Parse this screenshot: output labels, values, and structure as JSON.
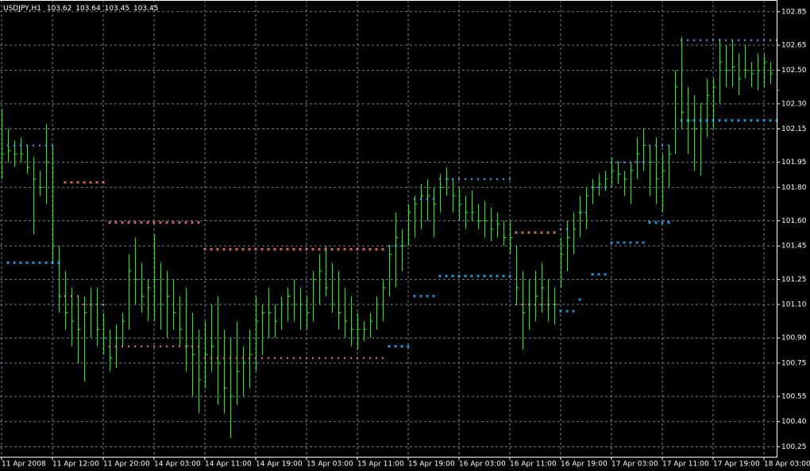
{
  "chart_data": {
    "type": "hlc",
    "symbol": "USDJPY,H1",
    "quote": [
      103.62,
      103.64,
      103.45,
      103.45
    ],
    "bar_color": "#00ff00",
    "grid": true,
    "ylim": [
      100.19,
      102.92
    ],
    "yticks": [
      102.85,
      102.65,
      {
        "value": 102.5,
        "label": "102.50"
      },
      {
        "value": 102.3,
        "label": "102.30"
      },
      102.15,
      101.95,
      {
        "value": 101.8,
        "label": "101.80"
      },
      {
        "value": 101.6,
        "label": "101.60"
      },
      101.45,
      101.25,
      {
        "value": 101.1,
        "label": "101.10"
      },
      {
        "value": 100.9,
        "label": "100.90"
      },
      100.75,
      100.55,
      {
        "value": 100.4,
        "label": "100.40"
      },
      100.25
    ],
    "categories": [
      "11 Apr 2008",
      null,
      null,
      null,
      null,
      null,
      null,
      null,
      "11 Apr 12:00",
      null,
      null,
      null,
      null,
      null,
      null,
      null,
      "11 Apr 20:00",
      null,
      null,
      null,
      null,
      null,
      null,
      null,
      "14 Apr 03:00",
      null,
      null,
      null,
      null,
      null,
      null,
      null,
      "14 Apr 11:00",
      null,
      null,
      null,
      null,
      null,
      null,
      null,
      "14 Apr 19:00",
      null,
      null,
      null,
      null,
      null,
      null,
      null,
      "15 Apr 03:00",
      null,
      null,
      null,
      null,
      null,
      null,
      null,
      "15 Apr 11:00",
      null,
      null,
      null,
      null,
      null,
      null,
      null,
      "15 Apr 19:00",
      null,
      null,
      null,
      null,
      null,
      null,
      null,
      "16 Apr 03:00",
      null,
      null,
      null,
      null,
      null,
      null,
      null,
      "16 Apr 11:00",
      null,
      null,
      null,
      null,
      null,
      null,
      null,
      "16 Apr 19:00",
      null,
      null,
      null,
      null,
      null,
      null,
      null,
      "17 Apr 03:00",
      null,
      null,
      null,
      null,
      null,
      null,
      null,
      "17 Apr 11:00",
      null,
      null,
      null,
      null,
      null,
      null,
      null,
      "17 Apr 19:00",
      null,
      null,
      null,
      null,
      null,
      null,
      null,
      "18 Apr 03:00",
      null,
      null
    ],
    "high": [
      102.27,
      102.15,
      102.08,
      102.1,
      102.05,
      101.98,
      101.9,
      102.18,
      102.05,
      101.45,
      101.3,
      101.2,
      101.15,
      101.15,
      101.2,
      101.2,
      101.05,
      100.95,
      100.98,
      101.05,
      101.4,
      101.5,
      101.35,
      101.25,
      101.52,
      101.35,
      101.3,
      101.25,
      101.15,
      101.2,
      101.05,
      100.95,
      101.0,
      101.1,
      101.15,
      100.95,
      100.9,
      101.0,
      100.85,
      100.95,
      101.15,
      101.1,
      101.2,
      101.1,
      101.15,
      101.2,
      101.25,
      101.2,
      101.15,
      101.3,
      101.4,
      101.45,
      101.35,
      101.3,
      101.2,
      101.15,
      101.05,
      101.0,
      101.05,
      101.15,
      101.25,
      101.45,
      101.65,
      101.55,
      101.7,
      101.75,
      101.82,
      101.85,
      101.8,
      101.88,
      101.92,
      101.85,
      101.8,
      101.75,
      101.78,
      101.7,
      101.72,
      101.68,
      101.65,
      101.6,
      101.6,
      101.45,
      101.3,
      101.25,
      101.3,
      101.35,
      101.25,
      101.2,
      101.5,
      101.6,
      101.65,
      101.75,
      101.8,
      101.85,
      101.88,
      101.9,
      101.98,
      101.95,
      101.9,
      101.95,
      102.1,
      102.15,
      102.05,
      102.1,
      102.0,
      102.05,
      102.5,
      102.7,
      102.4,
      102.35,
      102.3,
      102.45,
      102.45,
      102.69,
      102.65,
      102.68,
      102.6,
      102.65,
      102.55,
      102.6,
      102.6,
      102.55,
      102.52
    ],
    "low": [
      101.85,
      101.95,
      101.92,
      101.95,
      101.88,
      101.52,
      101.75,
      101.7,
      101.35,
      101.05,
      100.95,
      100.85,
      100.75,
      100.64,
      100.9,
      100.85,
      100.8,
      100.7,
      100.72,
      100.85,
      100.95,
      101.1,
      101.05,
      101.0,
      101.0,
      100.95,
      100.9,
      100.95,
      100.85,
      100.7,
      100.55,
      100.45,
      100.6,
      100.7,
      100.5,
      100.45,
      100.3,
      100.5,
      100.55,
      100.6,
      100.7,
      100.8,
      100.9,
      100.9,
      100.95,
      101.0,
      101.0,
      100.95,
      100.95,
      101.0,
      101.1,
      101.15,
      101.05,
      100.95,
      100.9,
      100.85,
      100.83,
      100.88,
      100.9,
      100.95,
      101.0,
      101.15,
      101.2,
      101.3,
      101.45,
      101.5,
      101.55,
      101.6,
      101.5,
      101.65,
      101.75,
      101.65,
      101.6,
      101.55,
      101.6,
      101.55,
      101.5,
      101.48,
      101.5,
      101.45,
      101.4,
      101.1,
      100.83,
      100.95,
      101.0,
      101.05,
      101.0,
      100.98,
      101.2,
      101.3,
      101.4,
      101.5,
      101.55,
      101.7,
      101.75,
      101.78,
      101.8,
      101.82,
      101.75,
      101.7,
      101.85,
      101.9,
      101.75,
      101.7,
      101.65,
      101.8,
      102.0,
      102.15,
      102.0,
      101.9,
      101.87,
      102.1,
      102.15,
      102.3,
      102.4,
      102.4,
      102.35,
      102.45,
      102.4,
      102.38,
      102.4,
      102.42,
      102.35
    ],
    "close": [
      102.0,
      102.02,
      102.0,
      102.0,
      101.92,
      101.85,
      101.8,
      101.95,
      101.45,
      101.15,
      101.05,
      101.0,
      100.95,
      101.05,
      101.1,
      100.95,
      100.9,
      100.78,
      100.9,
      101.0,
      101.3,
      101.25,
      101.15,
      101.2,
      101.25,
      101.1,
      101.15,
      101.05,
      100.95,
      100.85,
      100.8,
      100.65,
      100.8,
      100.85,
      100.75,
      100.6,
      100.55,
      100.7,
      100.75,
      100.8,
      101.0,
      101.05,
      101.05,
      101.0,
      101.1,
      101.15,
      101.1,
      101.1,
      101.05,
      101.25,
      101.3,
      101.2,
      101.1,
      101.05,
      101.0,
      100.95,
      100.95,
      100.95,
      101.0,
      101.1,
      101.2,
      101.4,
      101.5,
      101.45,
      101.65,
      101.7,
      101.75,
      101.75,
      101.7,
      101.8,
      101.85,
      101.75,
      101.7,
      101.65,
      101.65,
      101.6,
      101.6,
      101.55,
      101.58,
      101.5,
      101.5,
      101.2,
      101.05,
      101.1,
      101.15,
      101.2,
      101.1,
      101.1,
      101.4,
      101.5,
      101.55,
      101.65,
      101.75,
      101.8,
      101.82,
      101.85,
      101.9,
      101.88,
      101.85,
      101.9,
      102.0,
      102.05,
      101.95,
      101.85,
      101.9,
      102.0,
      102.4,
      102.25,
      102.2,
      102.15,
      102.3,
      102.35,
      102.4,
      102.55,
      102.5,
      102.52,
      102.45,
      102.5,
      102.48,
      102.5,
      102.55,
      102.48,
      102.38
    ],
    "series": [
      {
        "color": "#33b5ff",
        "marker": "dot",
        "values": [
          null,
          102.05,
          102.05,
          102.05,
          102.05,
          102.05,
          102.05,
          102.05,
          102.05,
          null,
          null,
          null,
          null,
          null,
          null,
          null,
          null,
          null,
          null,
          null,
          null,
          null,
          null,
          null,
          null,
          null,
          null,
          null,
          null,
          null,
          null,
          null,
          null,
          null,
          null,
          null,
          null,
          null,
          null,
          null,
          null,
          null,
          null,
          null,
          null,
          null,
          null,
          null,
          null,
          null,
          null,
          null,
          null,
          null,
          null,
          null,
          null,
          null,
          null,
          null,
          null,
          101.45,
          101.45,
          101.45,
          null,
          101.73,
          101.73,
          101.73,
          101.73,
          101.85,
          101.85,
          101.85,
          101.85,
          101.85,
          101.85,
          101.85,
          101.85,
          101.85,
          101.85,
          101.85,
          101.85,
          null,
          null,
          null,
          null,
          null,
          null,
          null,
          101.55,
          101.55,
          null,
          101.65,
          101.65,
          101.8,
          101.8,
          101.8,
          101.95,
          101.95,
          101.95,
          101.95,
          101.95,
          101.95,
          102.05,
          102.05,
          102.05,
          102.05,
          null,
          102.68,
          102.68,
          102.68,
          102.68,
          102.68,
          102.68,
          102.68,
          102.68,
          102.68,
          102.68,
          102.68,
          102.68,
          102.68,
          102.68,
          102.68,
          102.68
        ]
      },
      {
        "color": "#33b5ff",
        "marker": "x",
        "values": [
          null,
          101.35,
          101.35,
          101.35,
          101.35,
          101.35,
          101.35,
          101.35,
          101.35,
          101.35,
          null,
          null,
          null,
          null,
          null,
          null,
          null,
          null,
          null,
          null,
          null,
          null,
          null,
          null,
          null,
          null,
          null,
          null,
          null,
          null,
          null,
          null,
          null,
          null,
          null,
          null,
          null,
          null,
          null,
          null,
          null,
          null,
          null,
          null,
          null,
          null,
          null,
          null,
          null,
          null,
          null,
          null,
          null,
          null,
          null,
          null,
          null,
          null,
          null,
          null,
          null,
          100.85,
          100.85,
          100.85,
          100.85,
          101.15,
          101.15,
          101.15,
          101.15,
          101.27,
          101.27,
          101.27,
          101.27,
          101.27,
          101.27,
          101.27,
          101.27,
          101.27,
          101.27,
          101.27,
          101.27,
          null,
          null,
          null,
          null,
          null,
          null,
          null,
          101.06,
          101.06,
          101.06,
          101.13,
          null,
          101.28,
          101.28,
          101.28,
          101.47,
          101.47,
          101.47,
          101.47,
          101.47,
          101.47,
          101.59,
          101.59,
          101.59,
          101.59,
          null,
          102.2,
          102.2,
          102.2,
          102.2,
          102.2,
          102.2,
          102.2,
          102.2,
          102.2,
          102.2,
          102.2,
          102.2,
          102.2,
          102.2,
          102.2,
          102.2
        ]
      },
      {
        "color": "#fa8072",
        "marker": "x",
        "values": [
          null,
          null,
          null,
          null,
          null,
          null,
          null,
          null,
          null,
          null,
          101.83,
          101.83,
          101.83,
          101.83,
          101.83,
          101.83,
          101.83,
          101.59,
          101.59,
          101.59,
          101.59,
          101.59,
          101.59,
          101.59,
          101.59,
          101.59,
          101.59,
          101.59,
          101.59,
          101.59,
          101.59,
          101.59,
          101.43,
          101.43,
          101.43,
          101.43,
          101.43,
          101.43,
          101.43,
          101.43,
          101.43,
          101.43,
          101.43,
          101.43,
          101.43,
          101.43,
          101.43,
          101.43,
          101.43,
          101.43,
          101.43,
          101.43,
          101.43,
          101.43,
          101.43,
          101.43,
          101.43,
          101.43,
          101.43,
          101.43,
          101.43,
          null,
          null,
          null,
          null,
          null,
          null,
          null,
          null,
          null,
          null,
          null,
          null,
          null,
          null,
          null,
          null,
          null,
          null,
          null,
          null,
          101.53,
          101.53,
          101.53,
          101.53,
          101.53,
          101.53,
          101.53,
          null,
          null,
          null,
          null,
          null,
          null,
          null,
          null,
          null,
          null,
          null,
          null,
          null,
          null,
          null,
          null,
          null,
          null,
          null,
          null,
          null,
          null,
          null,
          null,
          null,
          null,
          null,
          null,
          null,
          null,
          null,
          null,
          null,
          null,
          null
        ]
      },
      {
        "color": "#fa8072",
        "marker": "dot",
        "values": [
          null,
          null,
          null,
          null,
          null,
          null,
          null,
          null,
          null,
          null,
          101.15,
          101.15,
          101.15,
          101.1,
          101.1,
          101.1,
          101.1,
          100.85,
          100.85,
          100.85,
          100.85,
          100.85,
          100.85,
          100.85,
          100.85,
          100.85,
          100.85,
          100.85,
          100.85,
          100.85,
          100.85,
          100.85,
          100.78,
          100.78,
          100.78,
          100.78,
          100.78,
          100.78,
          100.78,
          100.78,
          100.78,
          100.78,
          100.78,
          100.78,
          100.78,
          100.78,
          100.78,
          100.78,
          100.78,
          100.78,
          100.78,
          100.78,
          100.78,
          100.78,
          100.78,
          100.78,
          100.78,
          100.78,
          100.78,
          100.78,
          100.78,
          null,
          null,
          null,
          null,
          null,
          null,
          null,
          null,
          null,
          null,
          null,
          null,
          null,
          null,
          null,
          null,
          null,
          null,
          null,
          null,
          101.1,
          101.1,
          101.1,
          101.1,
          101.1,
          101.1,
          101.1,
          null,
          null,
          null,
          null,
          null,
          null,
          null,
          null,
          null,
          null,
          null,
          null,
          null,
          null,
          null,
          null,
          null,
          null,
          null,
          null,
          null,
          null,
          null,
          null,
          null,
          null,
          null,
          null,
          null,
          null,
          null,
          null,
          null,
          null,
          null
        ]
      }
    ]
  }
}
